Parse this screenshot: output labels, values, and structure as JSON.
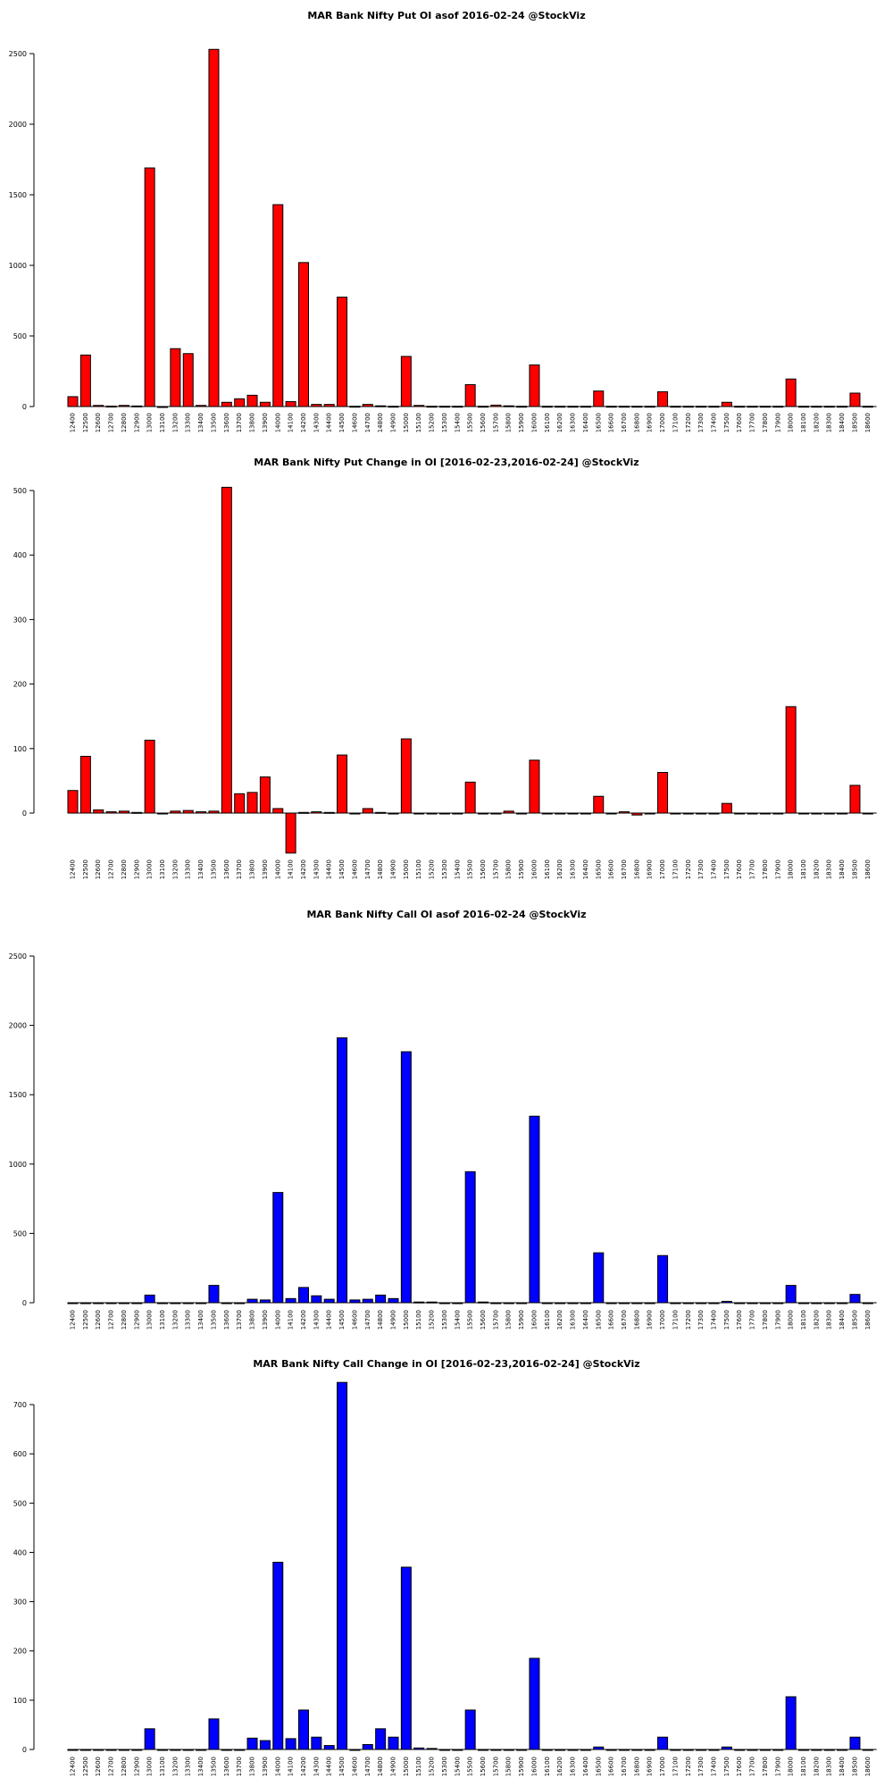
{
  "colors": {
    "put": "#ff0000",
    "call": "#0000ff",
    "stroke": "#000000"
  },
  "strikes": [
    "12400",
    "12500",
    "12600",
    "12700",
    "12800",
    "12900",
    "13000",
    "13100",
    "13200",
    "13300",
    "13400",
    "13500",
    "13600",
    "13700",
    "13800",
    "13900",
    "14000",
    "14100",
    "14200",
    "14300",
    "14400",
    "14500",
    "14600",
    "14700",
    "14800",
    "14900",
    "15000",
    "15100",
    "15200",
    "15300",
    "15400",
    "15500",
    "15600",
    "15700",
    "15800",
    "15900",
    "16000",
    "16100",
    "16200",
    "16300",
    "16400",
    "16500",
    "16600",
    "16700",
    "16800",
    "16900",
    "17000",
    "17100",
    "17200",
    "17300",
    "17400",
    "17500",
    "17600",
    "17700",
    "17800",
    "17900",
    "18000",
    "18100",
    "18200",
    "18300",
    "18400",
    "18500",
    "18600"
  ],
  "chart_data": [
    {
      "type": "bar",
      "title": "MAR Bank Nifty Put OI asof 2016-02-24 @StockViz",
      "color": "#ff0000",
      "ylim": [
        0,
        2500
      ],
      "yticks": [
        0,
        500,
        1000,
        1500,
        2000,
        2500
      ],
      "values": [
        70,
        365,
        8,
        3,
        8,
        4,
        1690,
        0,
        410,
        375,
        8,
        2530,
        30,
        55,
        80,
        30,
        1430,
        35,
        1020,
        15,
        15,
        775,
        2,
        15,
        5,
        2,
        355,
        8,
        2,
        2,
        2,
        155,
        2,
        10,
        5,
        2,
        295,
        2,
        2,
        2,
        2,
        110,
        2,
        2,
        2,
        2,
        105,
        2,
        2,
        2,
        2,
        30,
        2,
        2,
        2,
        2,
        195,
        2,
        2,
        2,
        2,
        95,
        2
      ]
    },
    {
      "type": "bar",
      "title": "MAR Bank Nifty Put Change in OI [2016-02-23,2016-02-24] @StockViz",
      "color": "#ff0000",
      "ylim": [
        -62,
        500
      ],
      "yticks": [
        0,
        100,
        200,
        300,
        400,
        500
      ],
      "values": [
        35,
        88,
        5,
        2,
        3,
        1,
        113,
        0,
        3,
        4,
        2,
        3,
        505,
        30,
        32,
        56,
        7,
        -62,
        1,
        2,
        1,
        90,
        0,
        7,
        1,
        0,
        115,
        0,
        0,
        0,
        0,
        48,
        0,
        0,
        3,
        0,
        82,
        0,
        0,
        0,
        0,
        26,
        0,
        2,
        -3,
        0,
        63,
        0,
        0,
        0,
        0,
        15,
        0,
        0,
        0,
        0,
        165,
        0,
        0,
        0,
        0,
        43,
        0
      ]
    },
    {
      "type": "bar",
      "title": "MAR Bank Nifty Call OI asof 2016-02-24 @StockViz",
      "color": "#0000ff",
      "ylim": [
        0,
        2500
      ],
      "yticks": [
        0,
        500,
        1000,
        1500,
        2000,
        2500
      ],
      "values": [
        0,
        0,
        0,
        0,
        0,
        0,
        55,
        0,
        0,
        0,
        0,
        125,
        0,
        0,
        25,
        20,
        795,
        30,
        110,
        50,
        25,
        1910,
        20,
        25,
        55,
        30,
        1810,
        5,
        5,
        0,
        0,
        945,
        5,
        0,
        0,
        0,
        1345,
        0,
        0,
        0,
        0,
        360,
        0,
        0,
        0,
        0,
        340,
        0,
        0,
        0,
        0,
        10,
        0,
        0,
        0,
        0,
        125,
        0,
        0,
        0,
        0,
        60,
        0
      ]
    },
    {
      "type": "bar",
      "title": "MAR Bank Nifty Call Change in OI [2016-02-23,2016-02-24] @StockViz",
      "color": "#0000ff",
      "ylim": [
        0,
        745
      ],
      "yticks": [
        0,
        100,
        200,
        300,
        400,
        500,
        600,
        700
      ],
      "values": [
        0,
        0,
        0,
        0,
        0,
        0,
        42,
        0,
        0,
        0,
        0,
        62,
        0,
        0,
        23,
        18,
        380,
        22,
        80,
        25,
        8,
        745,
        0,
        10,
        42,
        25,
        370,
        3,
        2,
        0,
        0,
        80,
        0,
        0,
        0,
        0,
        185,
        0,
        0,
        0,
        0,
        5,
        0,
        0,
        0,
        0,
        25,
        0,
        0,
        0,
        0,
        5,
        0,
        0,
        0,
        0,
        107,
        0,
        0,
        0,
        0,
        25,
        0
      ]
    }
  ]
}
